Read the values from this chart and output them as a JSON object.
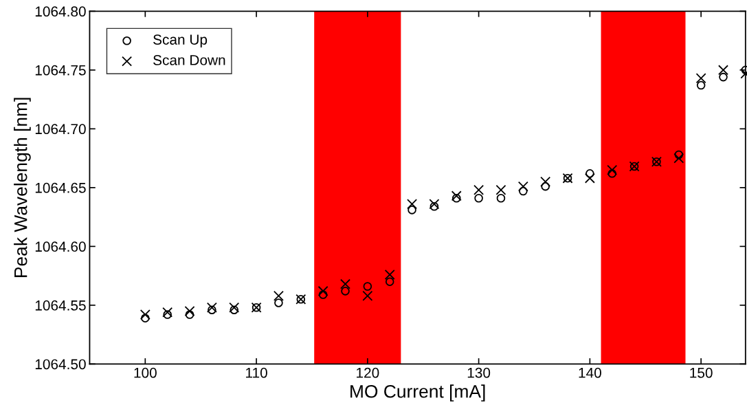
{
  "chart_data": {
    "type": "scatter",
    "xlabel": "MO Current [mA]",
    "ylabel": "Peak Wavelength [nm]",
    "x": [
      100,
      102,
      104,
      106,
      108,
      110,
      112,
      114,
      116,
      118,
      120,
      122,
      124,
      126,
      128,
      130,
      132,
      134,
      136,
      138,
      140,
      142,
      144,
      146,
      148,
      150,
      152,
      154
    ],
    "series": [
      {
        "name": "Scan Up",
        "color": "#000000",
        "marker": "circle",
        "values": [
          1064.539,
          1064.542,
          1064.542,
          1064.546,
          1064.546,
          1064.548,
          1064.552,
          1064.555,
          1064.559,
          1064.562,
          1064.566,
          1064.57,
          1064.631,
          1064.634,
          1064.641,
          1064.641,
          1064.641,
          1064.647,
          1064.651,
          1064.658,
          1064.662,
          1064.662,
          1064.668,
          1064.672,
          1064.678,
          1064.737,
          1064.744,
          1064.75
        ]
      },
      {
        "name": "Scan Down",
        "color": "#000000",
        "marker": "cross",
        "values": [
          1064.542,
          1064.544,
          1064.545,
          1064.548,
          1064.548,
          1064.548,
          1064.558,
          1064.555,
          1064.562,
          1064.568,
          1064.558,
          1064.576,
          1064.636,
          1064.636,
          1064.643,
          1064.648,
          1064.648,
          1064.651,
          1064.655,
          1064.658,
          1064.658,
          1064.665,
          1064.668,
          1064.672,
          1064.675,
          1064.743,
          1064.75,
          1064.747
        ]
      }
    ],
    "bands": [
      {
        "axis": "x",
        "from": 115.2,
        "to": 123.0,
        "color": "#ff0000"
      },
      {
        "axis": "x",
        "from": 141.0,
        "to": 148.6,
        "color": "#ff0000"
      }
    ],
    "xlim": [
      95,
      154
    ],
    "xticks": [
      100,
      110,
      120,
      130,
      140,
      150
    ],
    "ylim": [
      1064.5,
      1064.8
    ],
    "yticks": [
      {
        "value": 1064.5,
        "label": "1064.50"
      },
      {
        "value": 1064.55,
        "label": "1064.55"
      },
      {
        "value": 1064.6,
        "label": "1064.60"
      },
      {
        "value": 1064.65,
        "label": "1064.65"
      },
      {
        "value": 1064.7,
        "label": "1064.70"
      },
      {
        "value": 1064.75,
        "label": "1064.75"
      },
      {
        "value": 1064.8,
        "label": "1064.80"
      }
    ],
    "legend": "top left",
    "grid": false
  }
}
